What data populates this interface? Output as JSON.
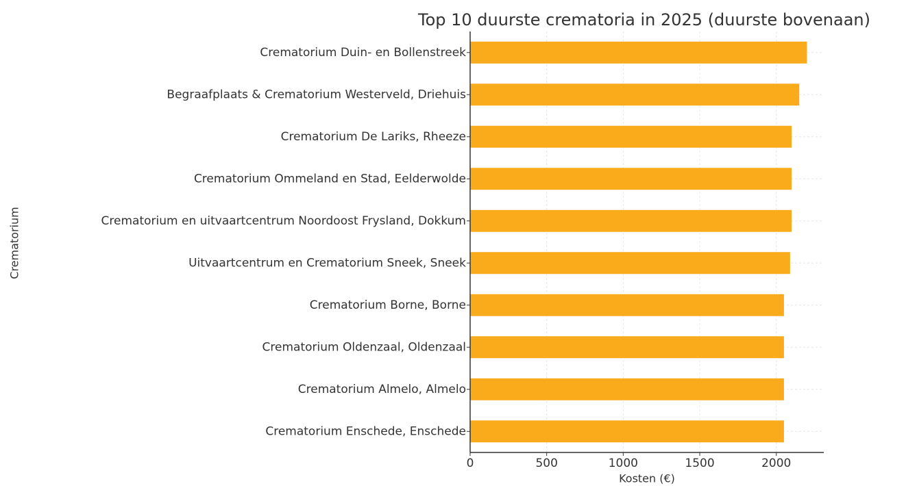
{
  "chart_data": {
    "type": "barh",
    "title": "Top 10 duurste crematoria in 2025 (duurste bovenaan)",
    "xlabel": "Kosten (€)",
    "ylabel": "Crematorium",
    "categories": [
      "Crematorium Duin- en Bollenstreek",
      "Begraafplaats & Crematorium Westerveld, Driehuis",
      "Crematorium De Lariks, Rheeze",
      "Crematorium Ommeland en Stad, Eelderwolde",
      "Crematorium en uitvaartcentrum Noordoost Frysland, Dokkum",
      "Uitvaartcentrum en Crematorium Sneek, Sneek",
      "Crematorium Borne, Borne",
      "Crematorium Oldenzaal, Oldenzaal",
      "Crematorium Almelo, Almelo",
      "Crematorium Enschede, Enschede"
    ],
    "values": [
      2200,
      2150,
      2100,
      2100,
      2100,
      2090,
      2050,
      2050,
      2050,
      2050
    ],
    "color": "#f9ab1c",
    "xlim": [
      0,
      2310
    ],
    "xticks": [
      0,
      500,
      1000,
      1500,
      2000
    ],
    "grid": true
  }
}
